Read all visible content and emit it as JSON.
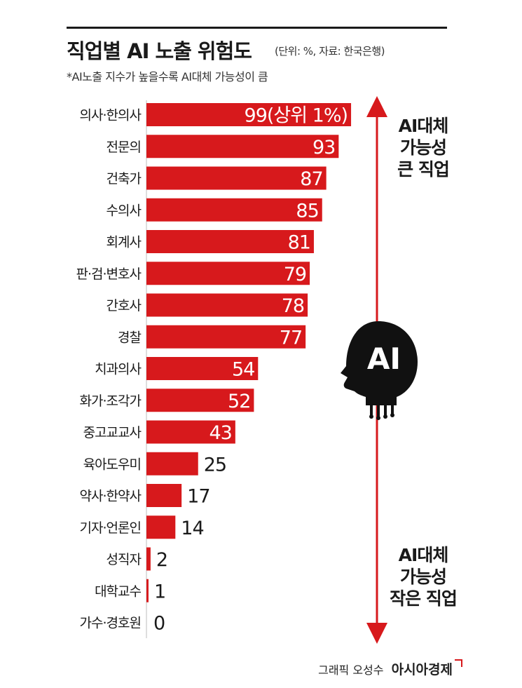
{
  "header": {
    "title": "직업별 AI 노출 위험도",
    "unit_source": "(단위: %, 자료: 한국은행)",
    "note": "*AI노출 지수가 높을수록 AI대체 가능성이 큼"
  },
  "side_labels": {
    "top": [
      "AI대체",
      "가능성",
      "큰 직업"
    ],
    "bottom": [
      "AI대체",
      "가능성",
      "작은 직업"
    ]
  },
  "ai_badge": "AI",
  "credit": {
    "byline": "그래픽 오성수",
    "brand": "아시아경제"
  },
  "colors": {
    "bar": "#d7191c",
    "arrow": "#d7191c",
    "text": "#1a1a1a",
    "bar_label_inside": "#ffffff"
  },
  "chart_data": {
    "type": "bar",
    "orientation": "horizontal",
    "title": "직업별 AI 노출 위험도",
    "categories": [
      "의사·한의사",
      "전문의",
      "건축가",
      "수의사",
      "회계사",
      "판·검·변호사",
      "간호사",
      "경찰",
      "치과의사",
      "화가·조각가",
      "중고교교사",
      "육아도우미",
      "약사·한약사",
      "기자·언론인",
      "성직자",
      "대학교수",
      "가수·경호원"
    ],
    "values": [
      99,
      93,
      87,
      85,
      81,
      79,
      78,
      77,
      54,
      52,
      43,
      25,
      17,
      14,
      2,
      1,
      0
    ],
    "value_labels": [
      "99(상위 1%)",
      "93",
      "87",
      "85",
      "81",
      "79",
      "78",
      "77",
      "54",
      "52",
      "43",
      "25",
      "17",
      "14",
      "2",
      "1",
      "0"
    ],
    "xlim": [
      0,
      100
    ],
    "xlabel": "",
    "ylabel": "",
    "grid": false,
    "legend": "none"
  }
}
